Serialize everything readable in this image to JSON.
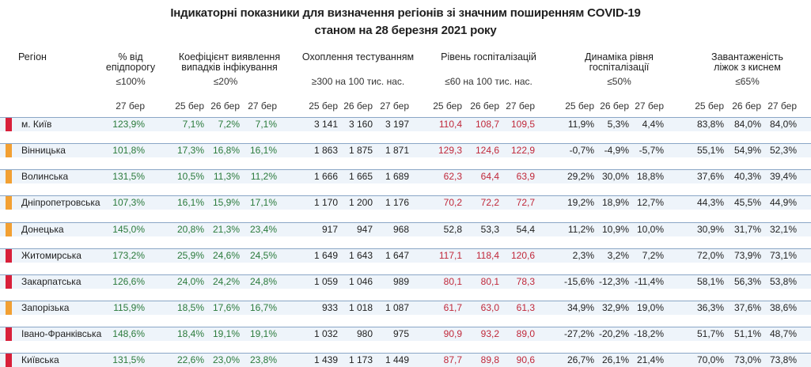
{
  "title_line1": "Індикаторні показники для визначення регіонів зі значним поширенням COVID-19",
  "title_line2": "станом на 28 березня 2021 року",
  "headers": {
    "region": "Регіон",
    "epi_l1": "% від",
    "epi_l2": "епідпорогу",
    "coef_l1": "Коефіцієнт виявлення",
    "coef_l2": "випадків інфікування",
    "test": "Охоплення тестуванням",
    "hosp": "Рівень госпіталізацій",
    "dyn_l1": "Динаміка рівня",
    "dyn_l2": "госпіталізації",
    "beds_l1": "Завантаженість",
    "beds_l2": "ліжок з киснем"
  },
  "thresholds": {
    "epi": "≤100%",
    "coef": "≤20%",
    "test": "≥300 на 100 тис. нас.",
    "hosp": "≤60 на 100 тис. нас.",
    "dyn": "≤50%",
    "beds": "≤65%"
  },
  "dates": {
    "d25": "25 бер",
    "d26": "26 бер",
    "d27": "27 бер"
  },
  "colors": {
    "flag_red": "#d8203a",
    "flag_orange": "#f2a033",
    "good": "#2a7a3b",
    "bad": "#c0283a",
    "row_bg": "#eef4fa",
    "row_border": "#8aa6c6"
  },
  "rows": [
    {
      "region": "м. Київ",
      "flag": "red",
      "epi": "123,9%",
      "c25": "7,1%",
      "c26": "7,2%",
      "c27": "7,1%",
      "t25": "3 141",
      "t26": "3 160",
      "t27": "3 197",
      "h25": "110,4",
      "h26": "108,7",
      "h27": "109,5",
      "h25c": "red",
      "h26c": "red",
      "h27c": "red",
      "dy25": "11,9%",
      "dy26": "5,3%",
      "dy27": "4,4%",
      "b25": "83,8%",
      "b26": "84,0%",
      "b27": "84,0%"
    },
    {
      "region": "Вінницька",
      "flag": "orange",
      "epi": "101,8%",
      "c25": "17,3%",
      "c26": "16,8%",
      "c27": "16,1%",
      "t25": "1 863",
      "t26": "1 875",
      "t27": "1 871",
      "h25": "129,3",
      "h26": "124,6",
      "h27": "122,9",
      "h25c": "red",
      "h26c": "red",
      "h27c": "red",
      "dy25": "-0,7%",
      "dy26": "-4,9%",
      "dy27": "-5,7%",
      "b25": "55,1%",
      "b26": "54,9%",
      "b27": "52,3%"
    },
    {
      "region": "Волинська",
      "flag": "orange",
      "epi": "131,5%",
      "c25": "10,5%",
      "c26": "11,3%",
      "c27": "11,2%",
      "t25": "1 666",
      "t26": "1 665",
      "t27": "1 689",
      "h25": "62,3",
      "h26": "64,4",
      "h27": "63,9",
      "h25c": "red",
      "h26c": "red",
      "h27c": "red",
      "dy25": "29,2%",
      "dy26": "30,0%",
      "dy27": "18,8%",
      "b25": "37,6%",
      "b26": "40,3%",
      "b27": "39,4%"
    },
    {
      "region": "Дніпропетровська",
      "flag": "orange",
      "epi": "107,3%",
      "c25": "16,1%",
      "c26": "15,9%",
      "c27": "17,1%",
      "t25": "1 170",
      "t26": "1 200",
      "t27": "1 176",
      "h25": "70,2",
      "h26": "72,2",
      "h27": "72,7",
      "h25c": "red",
      "h26c": "red",
      "h27c": "red",
      "dy25": "19,2%",
      "dy26": "18,9%",
      "dy27": "12,7%",
      "b25": "44,3%",
      "b26": "45,5%",
      "b27": "44,9%"
    },
    {
      "region": "Донецька",
      "flag": "orange",
      "epi": "145,0%",
      "c25": "20,8%",
      "c26": "21,3%",
      "c27": "23,4%",
      "t25": "917",
      "t26": "947",
      "t27": "968",
      "h25": "52,8",
      "h26": "53,3",
      "h27": "54,4",
      "h25c": "plain",
      "h26c": "plain",
      "h27c": "plain",
      "dy25": "11,2%",
      "dy26": "10,9%",
      "dy27": "10,0%",
      "b25": "30,9%",
      "b26": "31,7%",
      "b27": "32,1%"
    },
    {
      "region": "Житомирська",
      "flag": "red",
      "epi": "173,2%",
      "c25": "25,9%",
      "c26": "24,6%",
      "c27": "24,5%",
      "t25": "1 649",
      "t26": "1 643",
      "t27": "1 647",
      "h25": "117,1",
      "h26": "118,4",
      "h27": "120,6",
      "h25c": "red",
      "h26c": "red",
      "h27c": "red",
      "dy25": "2,3%",
      "dy26": "3,2%",
      "dy27": "7,2%",
      "b25": "72,0%",
      "b26": "73,9%",
      "b27": "73,1%"
    },
    {
      "region": "Закарпатська",
      "flag": "red",
      "epi": "126,6%",
      "c25": "24,0%",
      "c26": "24,2%",
      "c27": "24,8%",
      "t25": "1 059",
      "t26": "1 046",
      "t27": "989",
      "h25": "80,1",
      "h26": "80,1",
      "h27": "78,3",
      "h25c": "red",
      "h26c": "red",
      "h27c": "red",
      "dy25": "-15,6%",
      "dy26": "-12,3%",
      "dy27": "-11,4%",
      "b25": "58,1%",
      "b26": "56,3%",
      "b27": "53,8%"
    },
    {
      "region": "Запорізька",
      "flag": "orange",
      "epi": "115,9%",
      "c25": "18,5%",
      "c26": "17,6%",
      "c27": "16,7%",
      "t25": "933",
      "t26": "1 018",
      "t27": "1 087",
      "h25": "61,7",
      "h26": "63,0",
      "h27": "61,3",
      "h25c": "red",
      "h26c": "red",
      "h27c": "red",
      "dy25": "34,9%",
      "dy26": "32,9%",
      "dy27": "19,0%",
      "b25": "36,3%",
      "b26": "37,6%",
      "b27": "38,6%"
    },
    {
      "region": "Івано-Франківська",
      "flag": "red",
      "epi": "148,6%",
      "c25": "18,4%",
      "c26": "19,1%",
      "c27": "19,1%",
      "t25": "1 032",
      "t26": "980",
      "t27": "975",
      "h25": "90,9",
      "h26": "93,2",
      "h27": "89,0",
      "h25c": "red",
      "h26c": "red",
      "h27c": "red",
      "dy25": "-27,2%",
      "dy26": "-20,2%",
      "dy27": "-18,2%",
      "b25": "51,7%",
      "b26": "51,1%",
      "b27": "48,7%"
    },
    {
      "region": "Київська",
      "flag": "red",
      "epi": "131,5%",
      "c25": "22,6%",
      "c26": "23,0%",
      "c27": "23,8%",
      "t25": "1 439",
      "t26": "1 173",
      "t27": "1 449",
      "h25": "87,7",
      "h26": "89,8",
      "h27": "90,6",
      "h25c": "red",
      "h26c": "red",
      "h27c": "red",
      "dy25": "26,7%",
      "dy26": "26,1%",
      "dy27": "21,4%",
      "b25": "70,0%",
      "b26": "73,0%",
      "b27": "73,8%"
    }
  ]
}
